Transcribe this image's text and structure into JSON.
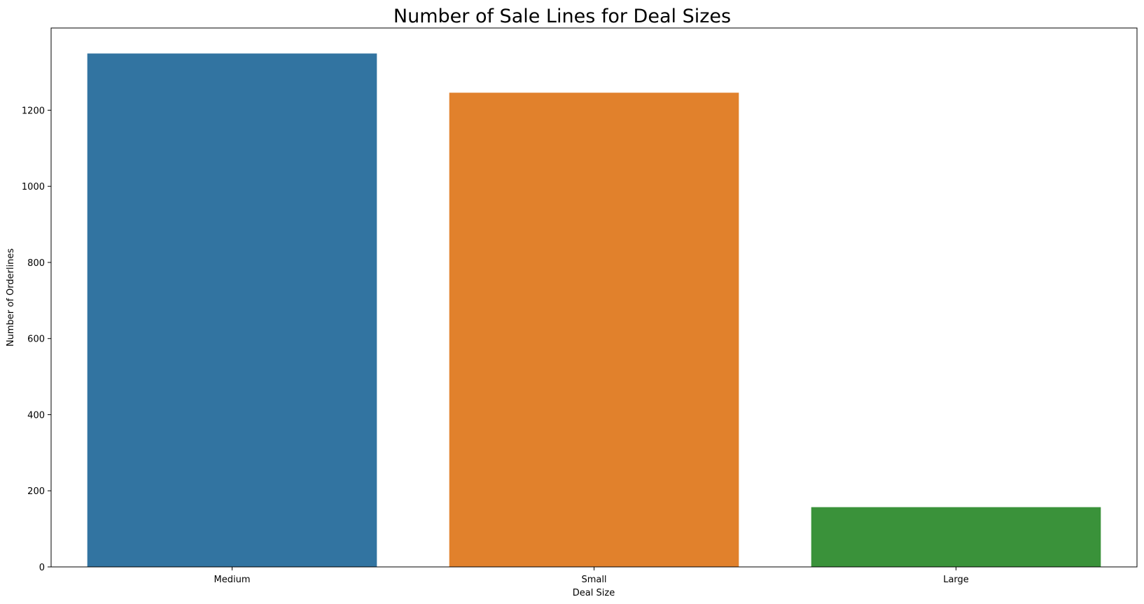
{
  "chart_data": {
    "type": "bar",
    "title": "Number of Sale Lines for Deal Sizes",
    "xlabel": "Deal Size",
    "ylabel": "Number of Orderlines",
    "categories": [
      "Medium",
      "Small",
      "Large"
    ],
    "values": [
      1349,
      1246,
      157
    ],
    "colors": [
      "#3274a1",
      "#e1812c",
      "#3a923a"
    ],
    "yticks": [
      0,
      200,
      400,
      600,
      800,
      1000,
      1200
    ],
    "ylim": [
      0,
      1416
    ],
    "grid": false,
    "legend": "none"
  }
}
